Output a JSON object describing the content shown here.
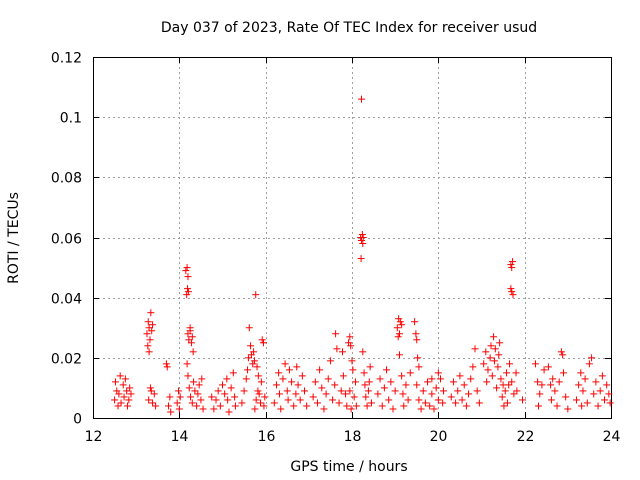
{
  "chart_data": {
    "type": "scatter",
    "title": "Day 037 of 2023, Rate Of TEC Index for receiver usud",
    "xlabel": "GPS time / hours",
    "ylabel": "ROTI / TECUs",
    "xlim": [
      12,
      24
    ],
    "ylim": [
      0,
      0.12
    ],
    "xticks": [
      12,
      14,
      16,
      18,
      20,
      22,
      24
    ],
    "xtick_labels": [
      "12",
      "14",
      "16",
      "18",
      "20",
      "22",
      "24"
    ],
    "yticks": [
      0,
      0.02,
      0.04,
      0.06,
      0.08,
      0.1,
      0.12
    ],
    "ytick_labels": [
      "0",
      "0.02",
      "0.04",
      "0.06",
      "0.08",
      "0.1",
      "0.12"
    ],
    "grid": true,
    "marker": "+",
    "color": "#ff0000",
    "series": [
      {
        "name": "ROTI",
        "points": [
          [
            12.5,
            0.006
          ],
          [
            12.52,
            0.012
          ],
          [
            12.55,
            0.009
          ],
          [
            12.58,
            0.004
          ],
          [
            12.6,
            0.008
          ],
          [
            12.63,
            0.014
          ],
          [
            12.65,
            0.005
          ],
          [
            12.7,
            0.011
          ],
          [
            12.72,
            0.007
          ],
          [
            12.75,
            0.013
          ],
          [
            12.78,
            0.009
          ],
          [
            12.8,
            0.004
          ],
          [
            12.83,
            0.006
          ],
          [
            12.85,
            0.01
          ],
          [
            12.88,
            0.008
          ],
          [
            13.25,
            0.028
          ],
          [
            13.28,
            0.032
          ],
          [
            13.3,
            0.03
          ],
          [
            13.32,
            0.026
          ],
          [
            13.34,
            0.035
          ],
          [
            13.36,
            0.029
          ],
          [
            13.38,
            0.031
          ],
          [
            13.3,
            0.022
          ],
          [
            13.27,
            0.024
          ],
          [
            13.29,
            0.006
          ],
          [
            13.33,
            0.01
          ],
          [
            13.38,
            0.005
          ],
          [
            13.42,
            0.008
          ],
          [
            13.45,
            0.004
          ],
          [
            13.35,
            0.009
          ],
          [
            13.7,
            0.018
          ],
          [
            13.72,
            0.017
          ],
          [
            13.75,
            0.004
          ],
          [
            13.78,
            0.007
          ],
          [
            13.8,
            0.002
          ],
          [
            13.95,
            0.005
          ],
          [
            13.98,
            0.009
          ],
          [
            14.0,
            0.003
          ],
          [
            14.02,
            0.007
          ],
          [
            14.15,
            0.049
          ],
          [
            14.18,
            0.05
          ],
          [
            14.2,
            0.047
          ],
          [
            14.17,
            0.041
          ],
          [
            14.21,
            0.042
          ],
          [
            14.19,
            0.043
          ],
          [
            14.2,
            0.028
          ],
          [
            14.22,
            0.026
          ],
          [
            14.25,
            0.029
          ],
          [
            14.28,
            0.025
          ],
          [
            14.3,
            0.027
          ],
          [
            14.32,
            0.022
          ],
          [
            14.25,
            0.03
          ],
          [
            14.18,
            0.018
          ],
          [
            14.2,
            0.014
          ],
          [
            14.23,
            0.01
          ],
          [
            14.26,
            0.007
          ],
          [
            14.3,
            0.005
          ],
          [
            14.33,
            0.012
          ],
          [
            14.36,
            0.009
          ],
          [
            14.4,
            0.004
          ],
          [
            14.43,
            0.008
          ],
          [
            14.46,
            0.011
          ],
          [
            14.5,
            0.006
          ],
          [
            14.52,
            0.013
          ],
          [
            14.55,
            0.003
          ],
          [
            14.75,
            0.007
          ],
          [
            14.8,
            0.003
          ],
          [
            14.85,
            0.006
          ],
          [
            14.9,
            0.009
          ],
          [
            14.95,
            0.004
          ],
          [
            15.0,
            0.011
          ],
          [
            15.05,
            0.008
          ],
          [
            15.1,
            0.013
          ],
          [
            15.12,
            0.006
          ],
          [
            15.15,
            0.002
          ],
          [
            15.2,
            0.01
          ],
          [
            15.25,
            0.015
          ],
          [
            15.28,
            0.007
          ],
          [
            15.3,
            0.004
          ],
          [
            15.45,
            0.005
          ],
          [
            15.5,
            0.009
          ],
          [
            15.55,
            0.013
          ],
          [
            15.58,
            0.016
          ],
          [
            15.6,
            0.02
          ],
          [
            15.62,
            0.03
          ],
          [
            15.65,
            0.024
          ],
          [
            15.67,
            0.021
          ],
          [
            15.7,
            0.018
          ],
          [
            15.72,
            0.022
          ],
          [
            15.74,
            0.019
          ],
          [
            15.77,
            0.041
          ],
          [
            15.8,
            0.017
          ],
          [
            15.83,
            0.014
          ],
          [
            15.85,
            0.008
          ],
          [
            15.88,
            0.005
          ],
          [
            15.9,
            0.012
          ],
          [
            15.92,
            0.026
          ],
          [
            15.95,
            0.025
          ],
          [
            15.75,
            0.003
          ],
          [
            15.78,
            0.006
          ],
          [
            15.82,
            0.009
          ],
          [
            15.96,
            0.004
          ],
          [
            15.98,
            0.007
          ],
          [
            16.2,
            0.005
          ],
          [
            16.25,
            0.011
          ],
          [
            16.3,
            0.015
          ],
          [
            16.32,
            0.008
          ],
          [
            16.35,
            0.003
          ],
          [
            16.4,
            0.013
          ],
          [
            16.45,
            0.018
          ],
          [
            16.5,
            0.009
          ],
          [
            16.52,
            0.006
          ],
          [
            16.55,
            0.016
          ],
          [
            16.6,
            0.012
          ],
          [
            16.65,
            0.004
          ],
          [
            16.7,
            0.008
          ],
          [
            16.72,
            0.017
          ],
          [
            16.75,
            0.011
          ],
          [
            16.8,
            0.006
          ],
          [
            16.85,
            0.014
          ],
          [
            16.9,
            0.009
          ],
          [
            16.95,
            0.004
          ],
          [
            17.1,
            0.007
          ],
          [
            17.15,
            0.012
          ],
          [
            17.2,
            0.005
          ],
          [
            17.25,
            0.016
          ],
          [
            17.3,
            0.01
          ],
          [
            17.35,
            0.003
          ],
          [
            17.4,
            0.008
          ],
          [
            17.45,
            0.013
          ],
          [
            17.5,
            0.019
          ],
          [
            17.55,
            0.006
          ],
          [
            17.6,
            0.011
          ],
          [
            17.62,
            0.028
          ],
          [
            17.65,
            0.023
          ],
          [
            17.7,
            0.005
          ],
          [
            17.75,
            0.009
          ],
          [
            17.78,
            0.022
          ],
          [
            17.8,
            0.014
          ],
          [
            17.85,
            0.008
          ],
          [
            17.88,
            0.004
          ],
          [
            17.92,
            0.025
          ],
          [
            17.95,
            0.027
          ],
          [
            17.97,
            0.024
          ],
          [
            18.0,
            0.019
          ],
          [
            18.02,
            0.016
          ],
          [
            18.05,
            0.007
          ],
          [
            18.08,
            0.012
          ],
          [
            18.1,
            0.004
          ],
          [
            17.95,
            0.009
          ],
          [
            17.98,
            0.003
          ],
          [
            18.22,
            0.106
          ],
          [
            18.2,
            0.06
          ],
          [
            18.22,
            0.059
          ],
          [
            18.25,
            0.058
          ],
          [
            18.21,
            0.053
          ],
          [
            18.24,
            0.061
          ],
          [
            18.26,
            0.06
          ],
          [
            18.25,
            0.022
          ],
          [
            18.28,
            0.015
          ],
          [
            18.3,
            0.011
          ],
          [
            18.32,
            0.007
          ],
          [
            18.35,
            0.004
          ],
          [
            18.38,
            0.009
          ],
          [
            18.4,
            0.012
          ],
          [
            18.42,
            0.017
          ],
          [
            18.45,
            0.005
          ],
          [
            18.6,
            0.008
          ],
          [
            18.65,
            0.013
          ],
          [
            18.7,
            0.004
          ],
          [
            18.75,
            0.01
          ],
          [
            18.8,
            0.016
          ],
          [
            18.85,
            0.006
          ],
          [
            18.9,
            0.012
          ],
          [
            18.95,
            0.003
          ],
          [
            19.0,
            0.009
          ],
          [
            19.05,
            0.03
          ],
          [
            19.08,
            0.033
          ],
          [
            19.1,
            0.028
          ],
          [
            19.12,
            0.032
          ],
          [
            19.15,
            0.031
          ],
          [
            19.07,
            0.027
          ],
          [
            19.1,
            0.021
          ],
          [
            19.15,
            0.014
          ],
          [
            19.18,
            0.008
          ],
          [
            19.2,
            0.004
          ],
          [
            19.25,
            0.011
          ],
          [
            19.3,
            0.006
          ],
          [
            19.35,
            0.015
          ],
          [
            19.45,
            0.032
          ],
          [
            19.48,
            0.028
          ],
          [
            19.5,
            0.026
          ],
          [
            19.52,
            0.02
          ],
          [
            19.55,
            0.017
          ],
          [
            19.5,
            0.011
          ],
          [
            19.55,
            0.006
          ],
          [
            19.6,
            0.003
          ],
          [
            19.65,
            0.009
          ],
          [
            19.7,
            0.005
          ],
          [
            19.75,
            0.012
          ],
          [
            19.8,
            0.004
          ],
          [
            19.85,
            0.008
          ],
          [
            19.9,
            0.003
          ],
          [
            19.95,
            0.01
          ],
          [
            20.0,
            0.006
          ],
          [
            20.05,
            0.013
          ],
          [
            20.1,
            0.005
          ],
          [
            20.12,
            0.009
          ],
          [
            20.0,
            0.015
          ],
          [
            19.85,
            0.013
          ],
          [
            20.3,
            0.007
          ],
          [
            20.35,
            0.012
          ],
          [
            20.4,
            0.005
          ],
          [
            20.45,
            0.009
          ],
          [
            20.5,
            0.014
          ],
          [
            20.55,
            0.006
          ],
          [
            20.6,
            0.011
          ],
          [
            20.65,
            0.004
          ],
          [
            20.7,
            0.008
          ],
          [
            20.75,
            0.013
          ],
          [
            20.8,
            0.017
          ],
          [
            20.85,
            0.023
          ],
          [
            20.9,
            0.009
          ],
          [
            20.95,
            0.005
          ],
          [
            21.05,
            0.018
          ],
          [
            21.1,
            0.022
          ],
          [
            21.12,
            0.012
          ],
          [
            21.15,
            0.016
          ],
          [
            21.2,
            0.02
          ],
          [
            21.22,
            0.024
          ],
          [
            21.25,
            0.014
          ],
          [
            21.28,
            0.027
          ],
          [
            21.3,
            0.019
          ],
          [
            21.32,
            0.023
          ],
          [
            21.35,
            0.01
          ],
          [
            21.38,
            0.017
          ],
          [
            21.4,
            0.021
          ],
          [
            21.42,
            0.025
          ],
          [
            21.45,
            0.013
          ],
          [
            21.48,
            0.007
          ],
          [
            21.5,
            0.011
          ],
          [
            21.52,
            0.004
          ],
          [
            21.55,
            0.009
          ],
          [
            21.58,
            0.015
          ],
          [
            21.68,
            0.051
          ],
          [
            21.7,
            0.05
          ],
          [
            21.72,
            0.052
          ],
          [
            21.68,
            0.043
          ],
          [
            21.7,
            0.042
          ],
          [
            21.73,
            0.041
          ],
          [
            21.65,
            0.018
          ],
          [
            21.7,
            0.012
          ],
          [
            21.75,
            0.008
          ],
          [
            21.8,
            0.015
          ],
          [
            21.82,
            0.009
          ],
          [
            21.6,
            0.005
          ],
          [
            21.63,
            0.011
          ],
          [
            21.95,
            0.006
          ],
          [
            22.25,
            0.018
          ],
          [
            22.3,
            0.012
          ],
          [
            22.32,
            0.004
          ],
          [
            22.35,
            0.008
          ],
          [
            22.4,
            0.011
          ],
          [
            22.45,
            0.016
          ],
          [
            22.55,
            0.017
          ],
          [
            22.6,
            0.011
          ],
          [
            22.62,
            0.006
          ],
          [
            22.65,
            0.013
          ],
          [
            22.7,
            0.009
          ],
          [
            22.75,
            0.004
          ],
          [
            22.8,
            0.012
          ],
          [
            22.85,
            0.022
          ],
          [
            22.88,
            0.021
          ],
          [
            22.9,
            0.015
          ],
          [
            22.95,
            0.007
          ],
          [
            23.0,
            0.003
          ],
          [
            23.2,
            0.006
          ],
          [
            23.25,
            0.011
          ],
          [
            23.3,
            0.015
          ],
          [
            23.32,
            0.004
          ],
          [
            23.35,
            0.009
          ],
          [
            23.4,
            0.013
          ],
          [
            23.45,
            0.005
          ],
          [
            23.5,
            0.018
          ],
          [
            23.55,
            0.02
          ],
          [
            23.6,
            0.008
          ],
          [
            23.65,
            0.012
          ],
          [
            23.7,
            0.004
          ],
          [
            23.75,
            0.009
          ],
          [
            23.8,
            0.014
          ],
          [
            23.85,
            0.006
          ],
          [
            23.9,
            0.011
          ],
          [
            23.95,
            0.008
          ],
          [
            23.98,
            0.005
          ]
        ]
      }
    ]
  }
}
